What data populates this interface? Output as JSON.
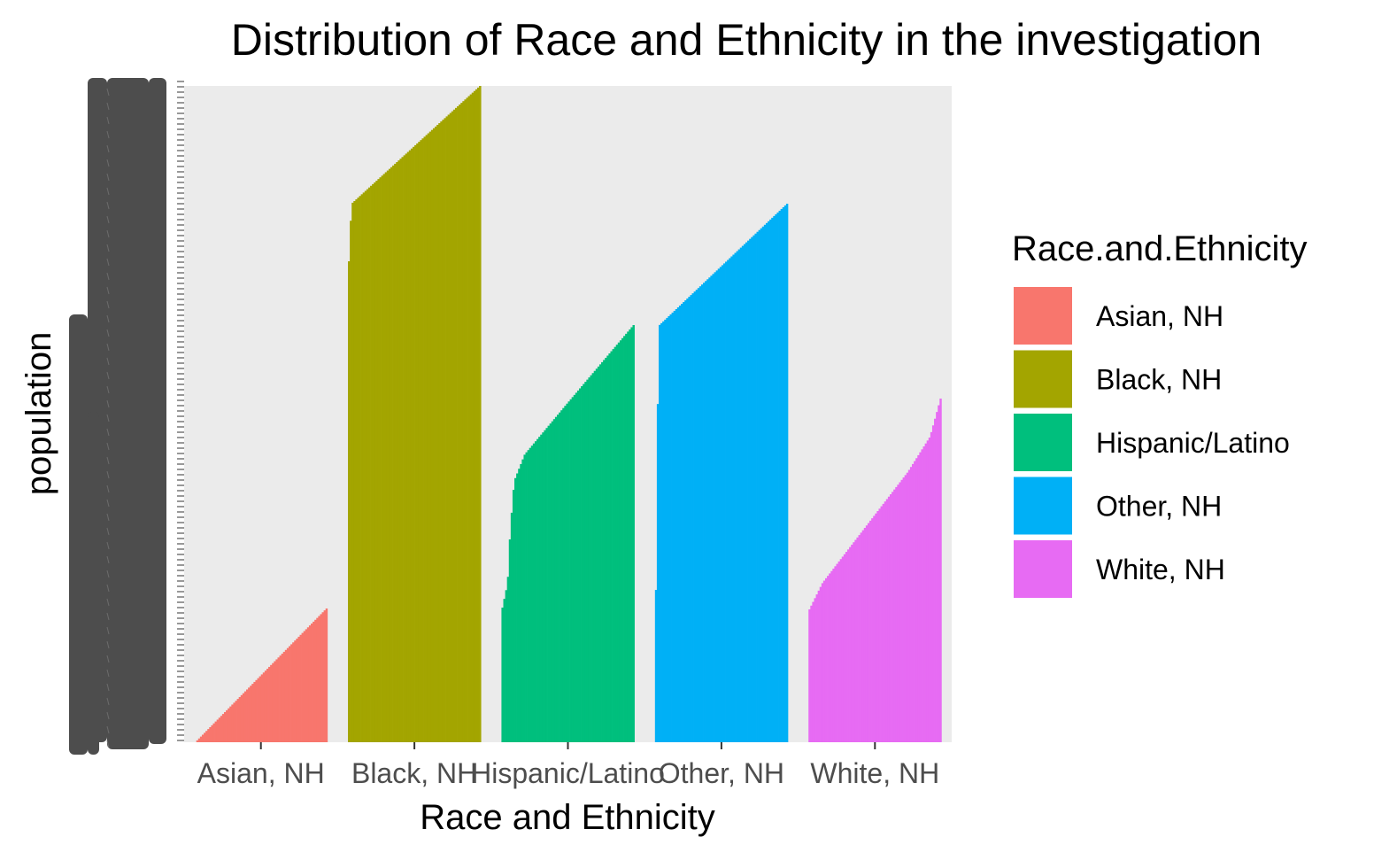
{
  "chart_data": {
    "type": "bar",
    "title": "Distribution of Race and Ethnicity in the investigation",
    "xlabel": "Race and Ethnicity",
    "ylabel": "population",
    "legend_title": "Race.and.Ethnicity",
    "legend_position": "right",
    "grid": false,
    "y_scale": "discrete",
    "categories": [
      "Asian, NH",
      "Black, NH",
      "Hispanic/Latino",
      "Other, NH",
      "White, NH"
    ],
    "colors": [
      "#F8766D",
      "#A3A500",
      "#00BF7D",
      "#00B0F6",
      "#E76BF3"
    ],
    "bars_per_category": 72,
    "profile_note": "Each category is a stack of many thin bars; values are discrete population ranks (approximate, read off the plotted bar heights).",
    "series": [
      {
        "name": "Asian, NH",
        "profile": [
          [
            0,
            0
          ],
          [
            1,
            151
          ]
        ]
      },
      {
        "name": "Black, NH",
        "profile": [
          [
            0,
            543
          ],
          [
            0.02,
            608
          ],
          [
            1,
            741
          ]
        ]
      },
      {
        "name": "Hispanic/Latino",
        "profile": [
          [
            0,
            152
          ],
          [
            0.04,
            180
          ],
          [
            0.06,
            240
          ],
          [
            0.09,
            295
          ],
          [
            0.17,
            325
          ],
          [
            0.48,
            380
          ],
          [
            1,
            471
          ]
        ]
      },
      {
        "name": "Other, NH",
        "profile": [
          [
            0,
            172
          ],
          [
            0.02,
            470
          ],
          [
            1,
            608
          ]
        ]
      },
      {
        "name": "White, NH",
        "profile": [
          [
            0,
            150
          ],
          [
            0.1,
            180
          ],
          [
            0.75,
            305
          ],
          [
            0.92,
            345
          ],
          [
            1,
            388
          ]
        ]
      }
    ],
    "ylim": [
      0,
      741
    ]
  }
}
